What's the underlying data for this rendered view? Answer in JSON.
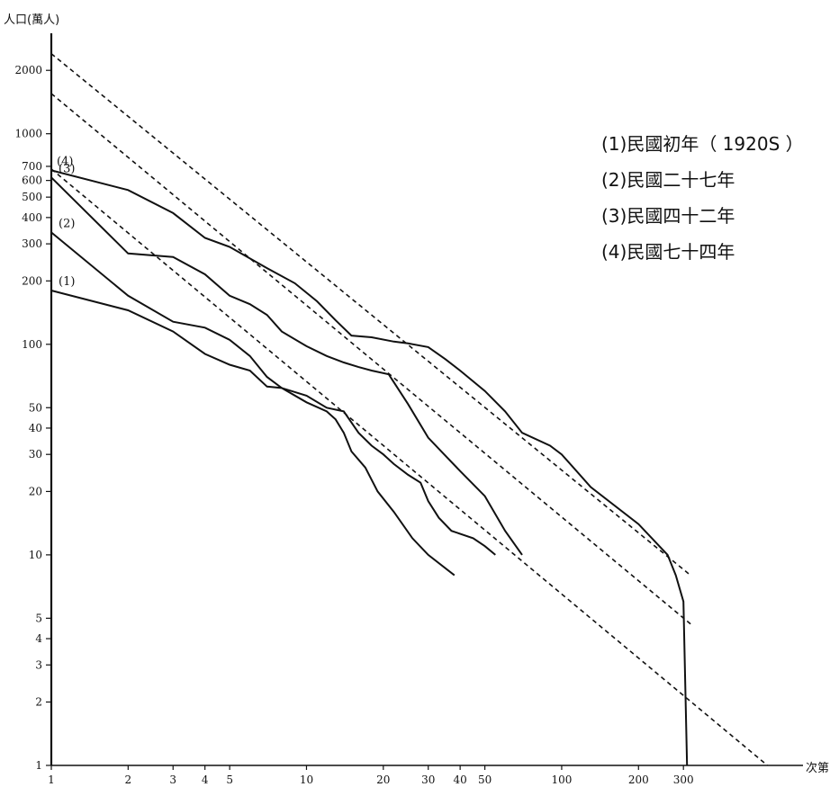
{
  "chart_data": {
    "type": "line",
    "ylabel": "人口(萬人)",
    "xlabel": "次第",
    "x_scale": "log",
    "y_scale": "log",
    "xlim": [
      1,
      750
    ],
    "ylim": [
      1,
      3000
    ],
    "x_ticks": [
      1,
      2,
      3,
      4,
      5,
      10,
      20,
      30,
      40,
      50,
      100,
      200,
      300
    ],
    "y_ticks": [
      1,
      2,
      3,
      4,
      5,
      10,
      20,
      30,
      40,
      50,
      100,
      200,
      300,
      400,
      500,
      600,
      700,
      1000,
      2000
    ],
    "grid": false,
    "legend_position": "top-right",
    "series": [
      {
        "name": "(1)民國初年（ 1920S ）",
        "tag": "(1)",
        "style": "solid",
        "points": [
          [
            1,
            180
          ],
          [
            2,
            145
          ],
          [
            3,
            115
          ],
          [
            4,
            90
          ],
          [
            5,
            80
          ],
          [
            6,
            75
          ],
          [
            7,
            63
          ],
          [
            8,
            62
          ],
          [
            10,
            53
          ],
          [
            12,
            48
          ],
          [
            13,
            44
          ],
          [
            14,
            38
          ],
          [
            15,
            31
          ],
          [
            17,
            26
          ],
          [
            19,
            20
          ],
          [
            22,
            16
          ],
          [
            26,
            12
          ],
          [
            30,
            10
          ],
          [
            38,
            8
          ]
        ]
      },
      {
        "name": "(2)民國二十七年",
        "tag": "(2)",
        "style": "solid",
        "points": [
          [
            1,
            340
          ],
          [
            2,
            170
          ],
          [
            3,
            128
          ],
          [
            4,
            120
          ],
          [
            5,
            105
          ],
          [
            6,
            88
          ],
          [
            7,
            70
          ],
          [
            8,
            62
          ],
          [
            10,
            57
          ],
          [
            12,
            50
          ],
          [
            14,
            48
          ],
          [
            16,
            38
          ],
          [
            18,
            33
          ],
          [
            20,
            30
          ],
          [
            22,
            27
          ],
          [
            25,
            24
          ],
          [
            28,
            22
          ],
          [
            30,
            18
          ],
          [
            33,
            15
          ],
          [
            37,
            13
          ],
          [
            45,
            12
          ],
          [
            50,
            11
          ],
          [
            55,
            10
          ]
        ]
      },
      {
        "name": "(3)民國四十二年",
        "tag": "(3)",
        "style": "solid",
        "points": [
          [
            1,
            620
          ],
          [
            2,
            270
          ],
          [
            3,
            260
          ],
          [
            4,
            215
          ],
          [
            5,
            170
          ],
          [
            6,
            155
          ],
          [
            7,
            138
          ],
          [
            8,
            115
          ],
          [
            10,
            98
          ],
          [
            12,
            88
          ],
          [
            14,
            82
          ],
          [
            16,
            78
          ],
          [
            18,
            75
          ],
          [
            21,
            72
          ],
          [
            25,
            52
          ],
          [
            30,
            36
          ],
          [
            40,
            25
          ],
          [
            50,
            19
          ],
          [
            60,
            13
          ],
          [
            70,
            10
          ]
        ]
      },
      {
        "name": "(4)民國七十四年",
        "tag": "(4)",
        "style": "solid",
        "points": [
          [
            1,
            670
          ],
          [
            2,
            540
          ],
          [
            3,
            420
          ],
          [
            4,
            320
          ],
          [
            5,
            290
          ],
          [
            7,
            230
          ],
          [
            9,
            195
          ],
          [
            11,
            160
          ],
          [
            13,
            130
          ],
          [
            15,
            110
          ],
          [
            18,
            108
          ],
          [
            22,
            103
          ],
          [
            25,
            101
          ],
          [
            30,
            97
          ],
          [
            35,
            85
          ],
          [
            40,
            75
          ],
          [
            50,
            60
          ],
          [
            60,
            48
          ],
          [
            70,
            38
          ],
          [
            90,
            33
          ],
          [
            100,
            30
          ],
          [
            130,
            21
          ],
          [
            200,
            14
          ],
          [
            260,
            10
          ],
          [
            280,
            8
          ],
          [
            300,
            6
          ],
          [
            310,
            1
          ]
        ]
      },
      {
        "name": "",
        "style": "dashed",
        "points": [
          [
            1,
            2400
          ],
          [
            320,
            8
          ]
        ]
      },
      {
        "name": "",
        "style": "dashed",
        "points": [
          [
            1,
            1550
          ],
          [
            320,
            4.7
          ]
        ]
      },
      {
        "name": "",
        "style": "dashed",
        "points": [
          [
            1,
            680
          ],
          [
            640,
            1
          ]
        ]
      }
    ]
  }
}
